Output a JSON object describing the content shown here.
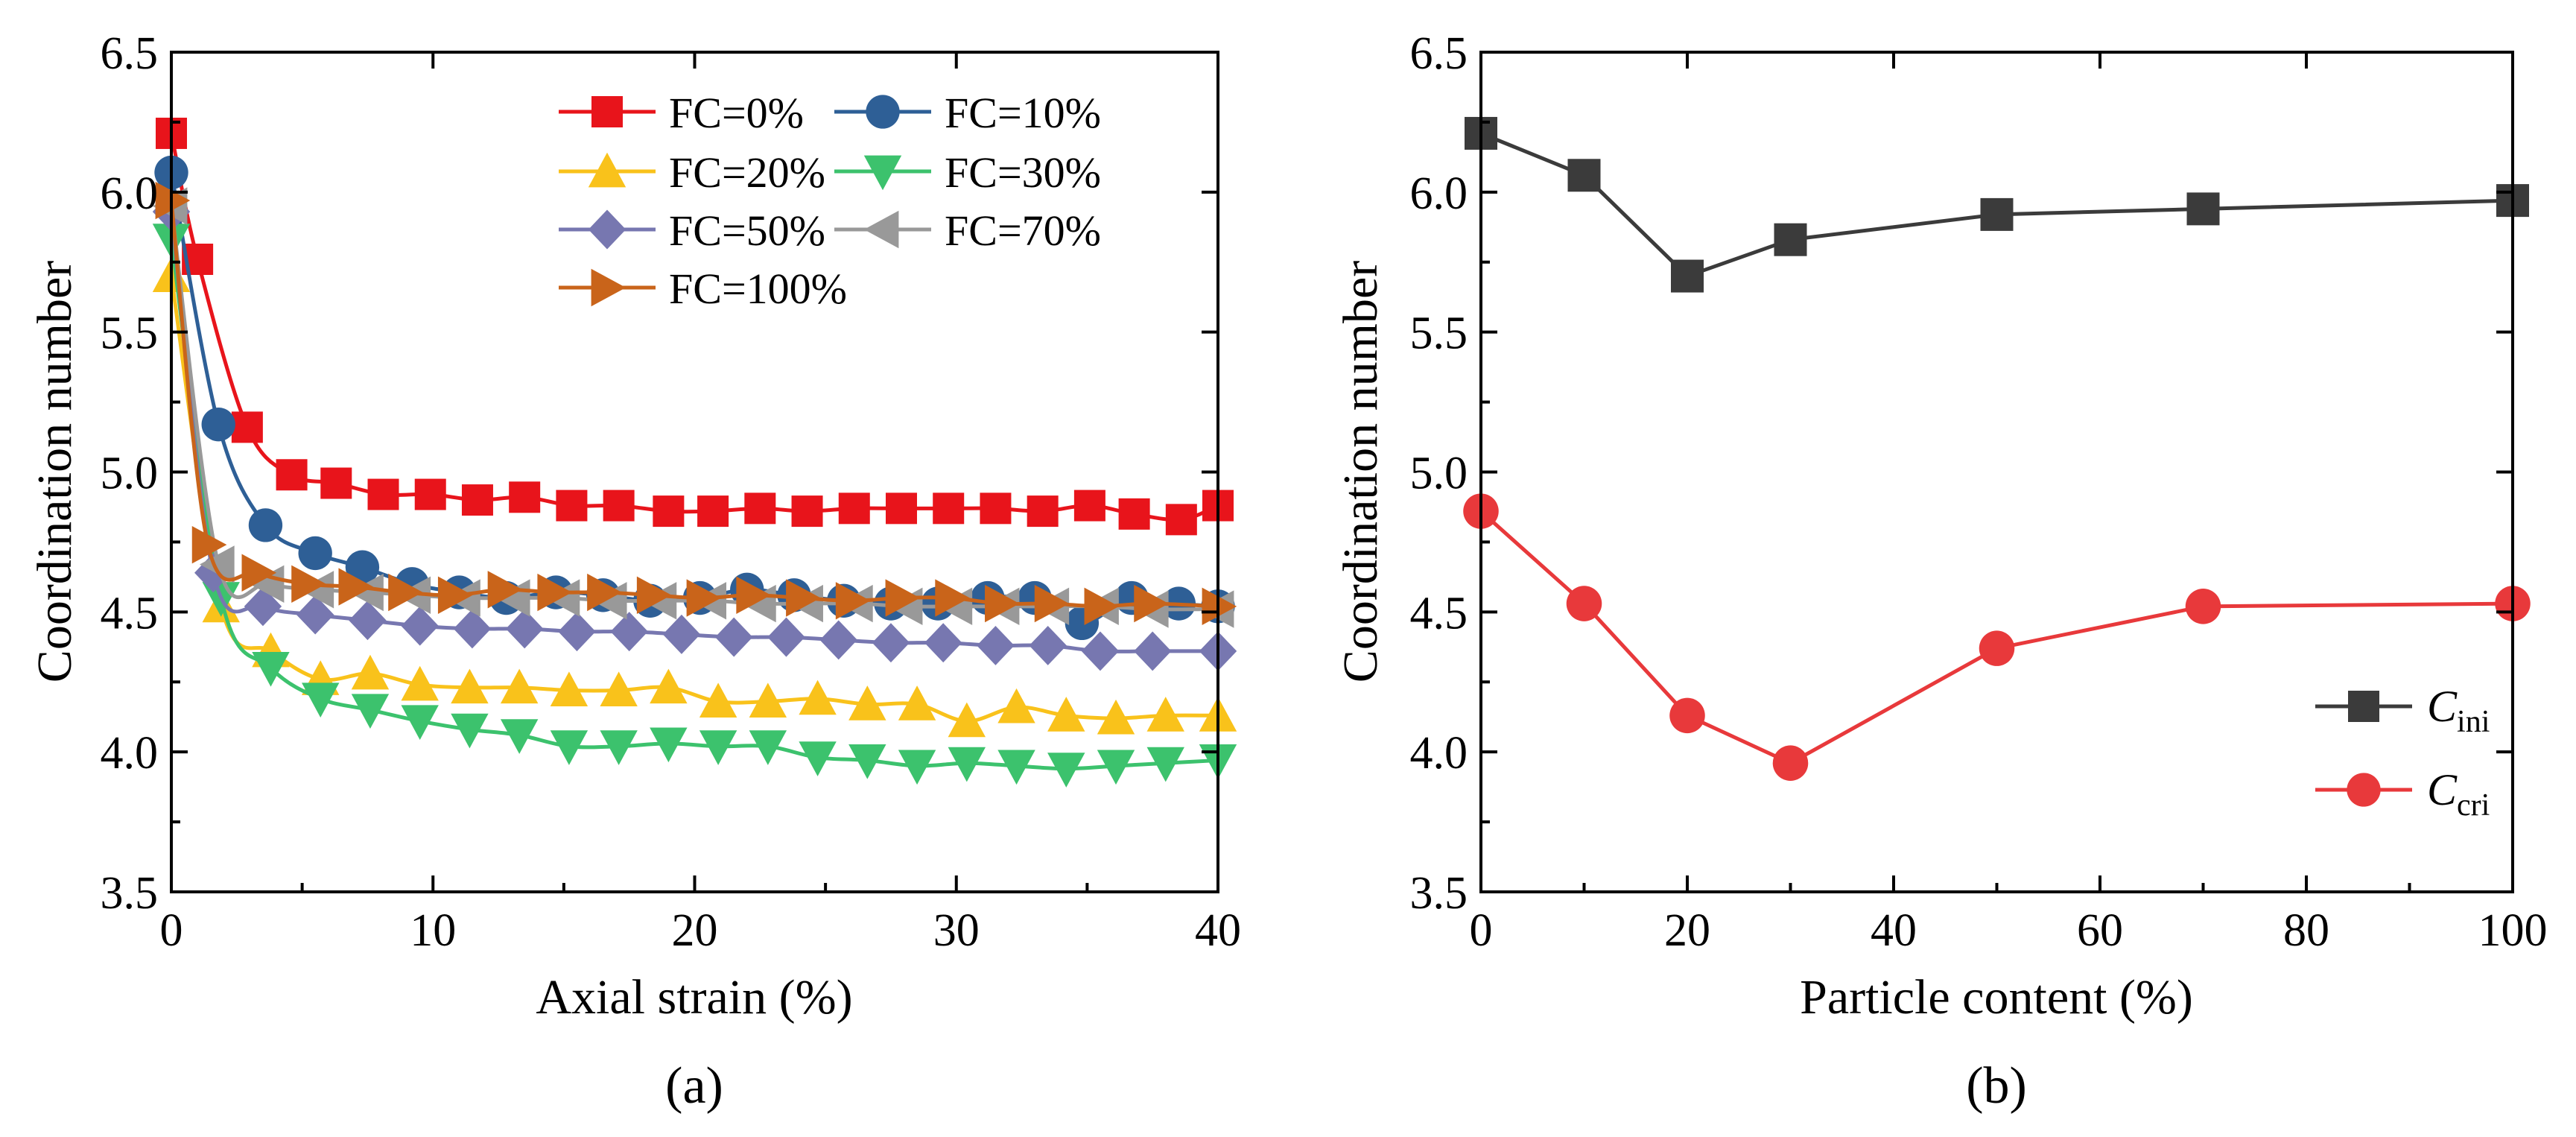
{
  "chart_data": [
    {
      "type": "line",
      "panel_label": "(a)",
      "xlabel": "Axial strain (%)",
      "ylabel": "Coordination number",
      "xlim": [
        0,
        40
      ],
      "ylim": [
        3.5,
        6.5
      ],
      "xticks": [
        "0",
        "10",
        "20",
        "30",
        "40"
      ],
      "yticks": [
        "3.5",
        "4.0",
        "4.5",
        "5.0",
        "5.5",
        "6.0",
        "6.5"
      ],
      "legend_position": "top-right",
      "series": [
        {
          "name": "FC=0%",
          "color": "#e8141b",
          "marker": "square",
          "x": [
            0,
            1,
            2.9,
            4.6,
            6.3,
            8.1,
            9.9,
            11.7,
            13.5,
            15.3,
            17.1,
            19,
            20.7,
            22.5,
            24.3,
            26.1,
            27.9,
            29.7,
            31.5,
            33.3,
            35.1,
            36.8,
            38.6,
            40
          ],
          "y": [
            6.21,
            5.76,
            5.16,
            4.99,
            4.96,
            4.92,
            4.92,
            4.9,
            4.91,
            4.88,
            4.88,
            4.86,
            4.86,
            4.87,
            4.86,
            4.87,
            4.87,
            4.87,
            4.87,
            4.86,
            4.88,
            4.85,
            4.83,
            4.88
          ]
        },
        {
          "name": "FC=10%",
          "color": "#2e5f96",
          "marker": "circle",
          "x": [
            0,
            1.8,
            3.6,
            5.5,
            7.3,
            9.2,
            11,
            12.8,
            14.7,
            16.5,
            18.3,
            20.2,
            22,
            23.8,
            25.7,
            27.5,
            29.3,
            31.2,
            33,
            34.8,
            36.7,
            38.5,
            40
          ],
          "y": [
            6.07,
            5.17,
            4.81,
            4.71,
            4.66,
            4.6,
            4.57,
            4.55,
            4.57,
            4.56,
            4.54,
            4.55,
            4.58,
            4.56,
            4.54,
            4.53,
            4.53,
            4.55,
            4.55,
            4.46,
            4.55,
            4.53,
            4.52
          ]
        },
        {
          "name": "FC=20%",
          "color": "#f9c21b",
          "marker": "triangle-up",
          "x": [
            0,
            1.9,
            3.8,
            5.7,
            7.6,
            9.5,
            11.4,
            13.3,
            15.2,
            17.1,
            19,
            20.9,
            22.8,
            24.7,
            26.6,
            28.5,
            30.4,
            32.3,
            34.2,
            36.1,
            38,
            40
          ],
          "y": [
            5.7,
            4.52,
            4.36,
            4.26,
            4.28,
            4.24,
            4.23,
            4.23,
            4.22,
            4.22,
            4.23,
            4.18,
            4.18,
            4.19,
            4.17,
            4.17,
            4.11,
            4.16,
            4.13,
            4.12,
            4.13,
            4.13
          ]
        },
        {
          "name": "FC=30%",
          "color": "#3cc26d",
          "marker": "triangle-down",
          "x": [
            0,
            1.9,
            3.8,
            5.7,
            7.6,
            9.5,
            11.4,
            13.3,
            15.2,
            17.1,
            19,
            20.9,
            22.8,
            24.7,
            26.6,
            28.5,
            30.4,
            32.3,
            34.2,
            36.1,
            38,
            40
          ],
          "y": [
            5.83,
            4.55,
            4.3,
            4.19,
            4.15,
            4.11,
            4.08,
            4.06,
            4.02,
            4.02,
            4.03,
            4.02,
            4.02,
            3.98,
            3.97,
            3.95,
            3.96,
            3.95,
            3.94,
            3.95,
            3.96,
            3.97
          ]
        },
        {
          "name": "FC=50%",
          "color": "#7777b0",
          "marker": "diamond",
          "x": [
            0,
            1.6,
            3.5,
            5.5,
            7.5,
            9.5,
            11.5,
            13.5,
            15.5,
            17.5,
            19.5,
            21.5,
            23.5,
            25.5,
            27.5,
            29.5,
            31.5,
            33.5,
            35.5,
            37.5,
            40
          ],
          "y": [
            5.93,
            4.64,
            4.52,
            4.49,
            4.47,
            4.45,
            4.44,
            4.44,
            4.43,
            4.43,
            4.42,
            4.41,
            4.41,
            4.4,
            4.39,
            4.39,
            4.38,
            4.38,
            4.36,
            4.36,
            4.36
          ]
        },
        {
          "name": "FC=70%",
          "color": "#999999",
          "marker": "triangle-left",
          "x": [
            0,
            1.8,
            3.7,
            5.6,
            7.5,
            9.3,
            11.2,
            13.1,
            15,
            16.8,
            18.7,
            20.6,
            22.5,
            24.3,
            26.2,
            28.1,
            30,
            31.8,
            33.7,
            35.6,
            37.5,
            40
          ],
          "y": [
            5.95,
            4.67,
            4.6,
            4.58,
            4.57,
            4.56,
            4.55,
            4.55,
            4.55,
            4.54,
            4.54,
            4.54,
            4.53,
            4.53,
            4.53,
            4.52,
            4.52,
            4.52,
            4.52,
            4.52,
            4.51,
            4.51
          ]
        },
        {
          "name": "FC=100%",
          "color": "#c9641a",
          "marker": "triangle-right",
          "x": [
            0,
            1.4,
            3.3,
            5.2,
            7,
            8.9,
            10.8,
            12.7,
            14.6,
            16.5,
            18.4,
            20.3,
            22.2,
            24.1,
            26,
            27.9,
            29.8,
            31.7,
            33.6,
            35.5,
            37.4,
            40
          ],
          "y": [
            5.97,
            4.74,
            4.64,
            4.6,
            4.59,
            4.57,
            4.56,
            4.58,
            4.57,
            4.57,
            4.56,
            4.55,
            4.56,
            4.55,
            4.54,
            4.55,
            4.55,
            4.53,
            4.53,
            4.52,
            4.53,
            4.52
          ]
        }
      ]
    },
    {
      "type": "line",
      "panel_label": "(b)",
      "xlabel": "Particle content (%)",
      "ylabel": "Coordination number",
      "xlim": [
        0,
        100
      ],
      "ylim": [
        3.5,
        6.5
      ],
      "xticks": [
        "0",
        "20",
        "40",
        "60",
        "80",
        "100"
      ],
      "yticks": [
        "3.5",
        "4.0",
        "4.5",
        "5.0",
        "5.5",
        "6.0",
        "6.5"
      ],
      "legend_position": "bottom-right",
      "series": [
        {
          "name": "C",
          "sub": "ini",
          "color": "#3b3b3b",
          "marker": "square",
          "x": [
            0,
            10,
            20,
            30,
            50,
            70,
            100
          ],
          "y": [
            6.21,
            6.06,
            5.7,
            5.83,
            5.92,
            5.94,
            5.97
          ]
        },
        {
          "name": "C",
          "sub": "cri",
          "color": "#e8393b",
          "marker": "circle",
          "x": [
            0,
            10,
            20,
            30,
            50,
            70,
            100
          ],
          "y": [
            4.86,
            4.53,
            4.13,
            3.96,
            4.37,
            4.52,
            4.53
          ]
        }
      ]
    }
  ]
}
